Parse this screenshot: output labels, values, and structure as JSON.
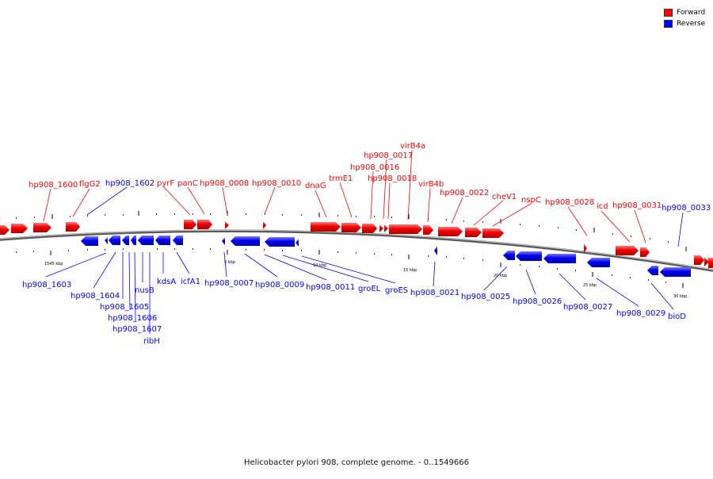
{
  "caption": "Helicobacter pylori 908, complete genome. - 0..1549666",
  "legend": [
    {
      "label": "Forward",
      "color": "#ff0000"
    },
    {
      "label": "Reverse",
      "color": "#0000ff"
    }
  ],
  "colors": {
    "forward": "#e80000",
    "reverse": "#0000e0",
    "backbone": "#8a8a8a"
  },
  "scale_labels": [
    "1545 kbp",
    "5 kbp",
    "10 kbp",
    "15 kbp",
    "20 kbp",
    "25 kbp",
    "30 kbp"
  ],
  "forward_labels": [
    "hp908_1600",
    "flgG2",
    "hp908_1602",
    "pyrF",
    "panC",
    "hp908_0008",
    "hp908_0010",
    "dnaG",
    "trmE1",
    "hp908_0016",
    "hp908_0017",
    "hp908_0018",
    "virB4a",
    "virB4b",
    "hp908_0022",
    "cheV1",
    "nspC",
    "hp908_0028",
    "icd",
    "hp908_0031",
    "hp908_0033"
  ],
  "reverse_labels": [
    "hp908_1603",
    "hp908_1604",
    "hp908_1605",
    "hp908_1606",
    "hp908_1607",
    "ribH",
    "nusB",
    "kdsA",
    "icfA1",
    "hp908_0007",
    "hp908_0009",
    "hp908_0011",
    "groEL",
    "groES",
    "hp908_0021",
    "hp908_0025",
    "hp908_0026",
    "hp908_0027",
    "hp908_0029",
    "bioD"
  ]
}
